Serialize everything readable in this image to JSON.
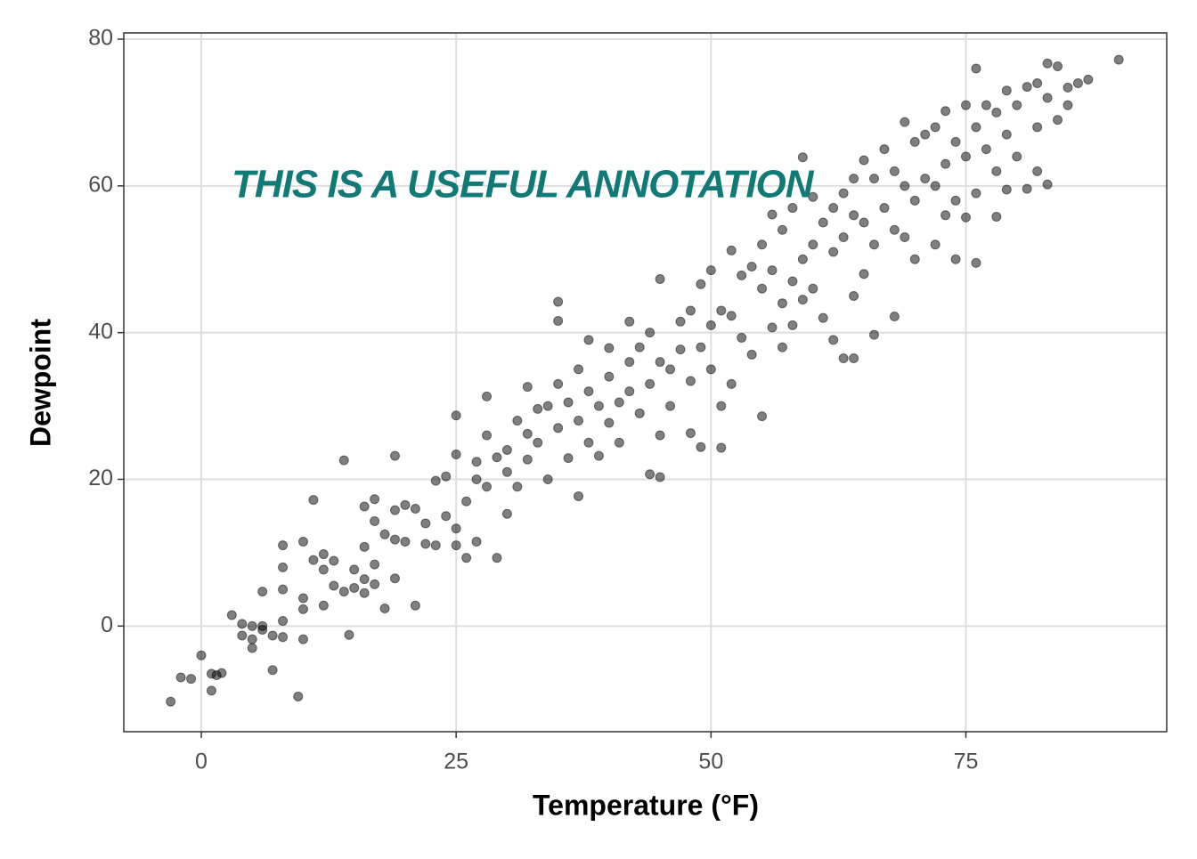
{
  "chart_data": {
    "type": "scatter",
    "annotation": "THIS IS A USEFUL ANNOTATION",
    "xlabel": "Temperature (°F)",
    "ylabel": "Dewpoint",
    "xlim": [
      -7.6,
      94.7
    ],
    "ylim": [
      -14.4,
      80.85
    ],
    "xticks": [
      0,
      25,
      50,
      75
    ],
    "yticks": [
      0,
      20,
      40,
      60,
      80
    ],
    "grid": true,
    "color": "#000000",
    "x": [
      -3,
      -2,
      -1,
      0,
      1,
      1,
      1.5,
      2,
      3,
      4,
      4,
      5,
      5,
      5,
      6,
      6,
      6,
      7,
      7,
      8,
      8,
      8,
      8,
      8,
      9.5,
      10,
      10,
      10,
      10,
      11,
      11,
      12,
      12,
      12,
      13,
      13,
      14,
      14,
      14.5,
      15,
      15,
      16,
      16,
      16,
      16,
      17,
      17,
      17,
      17,
      18,
      18,
      19,
      19,
      19,
      19,
      20,
      20,
      21,
      21,
      22,
      22,
      23,
      23,
      24,
      24,
      25,
      25,
      25,
      25,
      26,
      26,
      27,
      27,
      27,
      28,
      28,
      28,
      29,
      29,
      30,
      30,
      30,
      31,
      31,
      32,
      32,
      32,
      33,
      33,
      34,
      34,
      35,
      35,
      35,
      35,
      36,
      36,
      37,
      37,
      37,
      38,
      38,
      38,
      39,
      39,
      40,
      40,
      40,
      41,
      41,
      42,
      42,
      42,
      43,
      43,
      44,
      44,
      44,
      45,
      45,
      45,
      45,
      46,
      46,
      47,
      47,
      48,
      48,
      48,
      49,
      49,
      49,
      50,
      50,
      50,
      51,
      51,
      51,
      52,
      52,
      52,
      53,
      53,
      54,
      54,
      55,
      55,
      55,
      56,
      56,
      56,
      57,
      57,
      57,
      58,
      58,
      58,
      59,
      59,
      59,
      60,
      60,
      60,
      61,
      61,
      62,
      62,
      62,
      63,
      63,
      63,
      64,
      64,
      64,
      64,
      65,
      65,
      65,
      66,
      66,
      66,
      67,
      67,
      68,
      68,
      68,
      69,
      69,
      69,
      70,
      70,
      70,
      71,
      71,
      72,
      72,
      72,
      73,
      73,
      73,
      74,
      74,
      74,
      75,
      75,
      75,
      76,
      76,
      76,
      76,
      77,
      77,
      78,
      78,
      78,
      79,
      79,
      79,
      80,
      80,
      81,
      81,
      82,
      82,
      82,
      83,
      83,
      83,
      84,
      84,
      85,
      85,
      86,
      87,
      90
    ],
    "values": [
      -10.3,
      -7,
      -7.2,
      -4,
      -6.5,
      -8.8,
      -6.7,
      -6.4,
      1.5,
      0.3,
      -1.3,
      -1.8,
      -3,
      0,
      4.7,
      -0.5,
      0,
      -1.3,
      -6,
      11,
      8,
      5,
      0.7,
      -1.5,
      -9.6,
      11.5,
      3.8,
      2.3,
      -1.8,
      17.2,
      9,
      9.8,
      7.7,
      2.8,
      5.5,
      8.9,
      22.6,
      4.7,
      -1.2,
      7.7,
      5.2,
      16.3,
      10.8,
      6.4,
      4.5,
      17.3,
      14.3,
      8.4,
      5.7,
      12.5,
      2.4,
      15.8,
      11.8,
      6.5,
      23.2,
      16.5,
      11.5,
      2.8,
      16,
      14,
      11.2,
      19.8,
      11,
      20.4,
      15,
      28.7,
      23.4,
      13.3,
      11,
      17,
      9.3,
      22.4,
      20,
      11.5,
      26,
      19,
      31.3,
      23,
      9.3,
      24,
      21,
      15.3,
      28,
      19,
      32.6,
      26.2,
      22.7,
      29.6,
      25,
      30,
      20,
      33,
      41.6,
      27,
      44.2,
      30.5,
      22.9,
      35,
      17.7,
      28,
      39,
      32,
      25,
      30,
      23.2,
      37.9,
      34,
      27.7,
      30.5,
      25,
      41.5,
      36,
      32,
      38,
      29,
      40,
      33,
      20.7,
      47.3,
      36,
      26,
      20.3,
      35,
      30,
      41.5,
      37.7,
      43,
      33.4,
      26.3,
      46.6,
      38,
      24.4,
      48.5,
      41,
      35,
      43,
      30,
      24.3,
      51.2,
      42.3,
      33,
      47.8,
      39.3,
      49,
      37,
      52,
      46,
      28.6,
      56.1,
      48.5,
      40.7,
      54,
      44,
      38,
      57,
      47,
      41,
      63.9,
      50,
      44.5,
      58.5,
      52,
      46,
      55,
      42,
      57,
      51,
      39,
      59,
      53,
      36.5,
      61,
      56,
      45,
      36.5,
      63.5,
      55,
      48,
      61,
      52,
      39.7,
      65,
      57,
      62,
      54,
      42.2,
      68.7,
      60,
      53,
      66,
      58,
      50,
      67,
      61,
      68,
      60,
      52,
      70.2,
      63,
      56,
      66,
      58,
      50,
      71,
      64,
      55.7,
      76,
      68,
      59,
      49.5,
      71,
      65,
      70,
      62,
      55.8,
      73,
      67,
      59.5,
      71,
      64,
      73.5,
      59.6,
      74,
      68,
      62,
      76.7,
      72,
      60.2,
      76.3,
      69,
      71,
      73.4,
      74,
      74.5,
      77.2
    ]
  }
}
